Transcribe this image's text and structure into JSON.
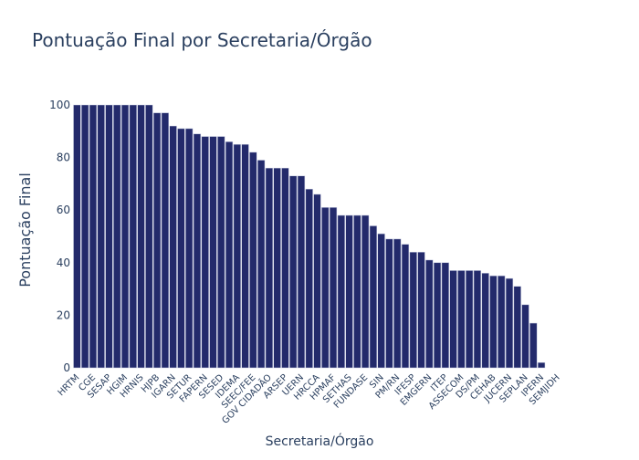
{
  "chart_data": {
    "type": "bar",
    "title": "Pontuação Final por Secretaria/Órgão",
    "xlabel": "Secretaria/Órgão",
    "ylabel": "Pontuação Final",
    "ylim": [
      0,
      100
    ],
    "yticks": [
      0,
      20,
      40,
      60,
      80,
      100
    ],
    "grid": false,
    "bar_color": "#232a6b",
    "bar_outline": "#c6cbe0",
    "tick_labels_every_other_bar": [
      "HRTM",
      "CGE",
      "SESAP",
      "HGIM",
      "HRNIS",
      "HJPB",
      "IGARN",
      "SETUR",
      "FAPERN",
      "SESED",
      "IDEMA",
      "SEEC/FEE",
      "GOV CIDADÃO",
      "ARSEP",
      "UERN",
      "HRCCA",
      "HPMAF",
      "SETHAS",
      "FUNDASE",
      "SIN",
      "PM/RN",
      "IFESP",
      "EMGERN",
      "ITEP",
      "ASSECOM",
      "DS/PM",
      "CEHAB",
      "JUCERN",
      "SEPLAN",
      "IPERN",
      "SEMJIDH"
    ],
    "values": [
      100,
      100,
      100,
      100,
      100,
      100,
      100,
      100,
      100,
      100,
      97,
      97,
      92,
      91,
      91,
      89,
      88,
      88,
      88,
      86,
      85,
      85,
      82,
      79,
      76,
      76,
      76,
      73,
      73,
      68,
      66,
      61,
      61,
      58,
      58,
      58,
      58,
      54,
      51,
      49,
      49,
      47,
      44,
      44,
      41,
      40,
      40,
      37,
      37,
      37,
      37,
      36,
      35,
      35,
      34,
      31,
      24,
      17,
      2,
      0,
      0
    ]
  }
}
